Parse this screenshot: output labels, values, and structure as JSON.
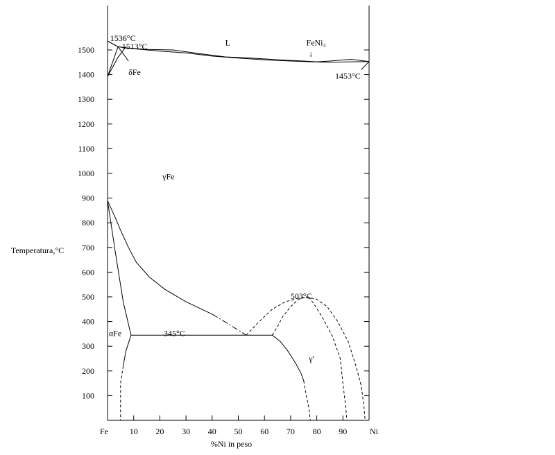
{
  "chart_data": {
    "type": "line",
    "title": "",
    "xlabel": "%Ni in peso",
    "ylabel": "Temperatura,°C",
    "xlim": [
      0,
      100
    ],
    "ylim": [
      0,
      1560
    ],
    "x_ticks": [
      {
        "value": 0,
        "label": "Fe"
      },
      {
        "value": 10,
        "label": "10"
      },
      {
        "value": 20,
        "label": "20"
      },
      {
        "value": 30,
        "label": "30"
      },
      {
        "value": 40,
        "label": "40"
      },
      {
        "value": 50,
        "label": "50"
      },
      {
        "value": 60,
        "label": "60"
      },
      {
        "value": 70,
        "label": "70"
      },
      {
        "value": 80,
        "label": "80"
      },
      {
        "value": 90,
        "label": "90"
      },
      {
        "value": 100,
        "label": "Ni"
      }
    ],
    "y_ticks": [
      100,
      200,
      300,
      400,
      500,
      600,
      700,
      800,
      900,
      1000,
      1100,
      1200,
      1300,
      1400,
      1500
    ],
    "grid": false,
    "series": [
      {
        "style": "solid",
        "points": [
          [
            0,
            1536
          ],
          [
            2,
            1525
          ],
          [
            4,
            1513
          ],
          [
            8,
            1507
          ],
          [
            15,
            1502
          ],
          [
            25,
            1500
          ],
          [
            35,
            1485
          ],
          [
            45,
            1472
          ],
          [
            55,
            1467
          ],
          [
            65,
            1460
          ],
          [
            75,
            1455
          ],
          [
            80,
            1452
          ],
          [
            85,
            1455
          ],
          [
            93,
            1462
          ],
          [
            100,
            1453
          ]
        ]
      },
      {
        "style": "solid",
        "points": [
          [
            0,
            1536
          ],
          [
            4,
            1513
          ],
          [
            10,
            1505
          ],
          [
            20,
            1495
          ],
          [
            30,
            1488
          ],
          [
            40,
            1475
          ],
          [
            50,
            1467
          ],
          [
            60,
            1460
          ],
          [
            70,
            1455
          ],
          [
            78,
            1452
          ],
          [
            85,
            1450
          ],
          [
            93,
            1452
          ],
          [
            100,
            1453
          ]
        ]
      },
      {
        "style": "solid",
        "points": [
          [
            0,
            1392
          ],
          [
            4,
            1513
          ]
        ]
      },
      {
        "style": "solid",
        "points": [
          [
            0,
            1392
          ],
          [
            4,
            1470
          ],
          [
            7,
            1513
          ]
        ]
      },
      {
        "style": "solid",
        "points": [
          [
            4,
            1513
          ],
          [
            8,
            1455
          ]
        ]
      },
      {
        "style": "solid",
        "points": [
          [
            97,
            1420
          ],
          [
            100,
            1453
          ]
        ]
      },
      {
        "style": "solid",
        "points": [
          [
            0,
            890
          ],
          [
            3,
            820
          ],
          [
            5,
            770
          ],
          [
            8,
            700
          ],
          [
            11,
            640
          ],
          [
            16,
            580
          ],
          [
            22,
            530
          ],
          [
            30,
            480
          ],
          [
            40,
            430
          ]
        ]
      },
      {
        "style": "dashdot",
        "points": [
          [
            40,
            430
          ],
          [
            47,
            385
          ],
          [
            53,
            345
          ]
        ]
      },
      {
        "style": "solid",
        "points": [
          [
            0,
            890
          ],
          [
            3,
            680
          ],
          [
            6,
            480
          ],
          [
            9,
            345
          ]
        ]
      },
      {
        "style": "solid",
        "points": [
          [
            9,
            345
          ],
          [
            63,
            345
          ]
        ]
      },
      {
        "style": "dashed",
        "points": [
          [
            53,
            345
          ],
          [
            58,
            400
          ],
          [
            63,
            450
          ],
          [
            68,
            480
          ],
          [
            73,
            495
          ],
          [
            77,
            500
          ]
        ]
      },
      {
        "style": "dashed",
        "points": [
          [
            63,
            345
          ],
          [
            65,
            380
          ],
          [
            67,
            420
          ],
          [
            70,
            460
          ],
          [
            73,
            490
          ],
          [
            76,
            500
          ]
        ]
      },
      {
        "style": "dashed",
        "points": [
          [
            77,
            500
          ],
          [
            79,
            470
          ],
          [
            82,
            420
          ],
          [
            86,
            340
          ],
          [
            89,
            250
          ],
          [
            90,
            150
          ],
          [
            91,
            60
          ],
          [
            91.5,
            0
          ]
        ]
      },
      {
        "style": "dashed",
        "points": [
          [
            76,
            500
          ],
          [
            80,
            490
          ],
          [
            84,
            460
          ],
          [
            88,
            400
          ],
          [
            92,
            320
          ],
          [
            95,
            220
          ],
          [
            97,
            140
          ],
          [
            98,
            60
          ],
          [
            98.5,
            0
          ]
        ]
      },
      {
        "style": "solid",
        "points": [
          [
            63,
            345
          ],
          [
            66,
            320
          ],
          [
            69,
            280
          ],
          [
            72,
            230
          ],
          [
            74,
            190
          ],
          [
            75,
            160
          ]
        ]
      },
      {
        "style": "dashed",
        "points": [
          [
            75,
            160
          ],
          [
            76,
            100
          ],
          [
            77,
            50
          ],
          [
            77.5,
            0
          ]
        ]
      },
      {
        "style": "solid",
        "points": [
          [
            9,
            345
          ],
          [
            7,
            280
          ],
          [
            6,
            220
          ]
        ]
      },
      {
        "style": "dashed",
        "points": [
          [
            6,
            220
          ],
          [
            5,
            150
          ],
          [
            5,
            80
          ],
          [
            5,
            0
          ]
        ]
      }
    ],
    "annotations": [
      {
        "text": "1536°C",
        "x": 1,
        "y": 1548
      },
      {
        "text": "1513°C",
        "x": 5.5,
        "y": 1514
      },
      {
        "text": "δFe",
        "x": 8,
        "y": 1410
      },
      {
        "text": "L",
        "x": 45,
        "y": 1530
      },
      {
        "text": "FeNi₃",
        "x": 76,
        "y": 1530
      },
      {
        "text": "↓",
        "x": 77,
        "y": 1485
      },
      {
        "text": "1453°C",
        "x": 87,
        "y": 1395
      },
      {
        "text": "γFe",
        "x": 21,
        "y": 988
      },
      {
        "text": "503°C",
        "x": 70,
        "y": 503
      },
      {
        "text": "345°C",
        "x": 21.5,
        "y": 353
      },
      {
        "text": "αFe",
        "x": 0.5,
        "y": 353
      },
      {
        "text": "γ'",
        "x": 77,
        "y": 250
      }
    ]
  }
}
